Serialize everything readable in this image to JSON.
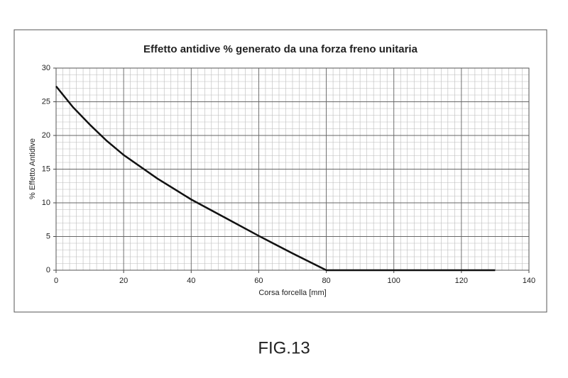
{
  "chart_data": {
    "type": "line",
    "title": "Effetto antidive % generato da una forza freno unitaria",
    "x_label": "Corsa forcella [mm]",
    "y_label": "% Effetto Antidive",
    "x": [
      0,
      5,
      10,
      15,
      20,
      30,
      40,
      50,
      60,
      70,
      80,
      130
    ],
    "series": [
      {
        "name": "Effetto antidive",
        "color": "#111111",
        "values": [
          27.3,
          24.2,
          21.6,
          19.2,
          17.1,
          13.6,
          10.5,
          7.8,
          5.1,
          2.5,
          0,
          0
        ]
      }
    ],
    "xlim": [
      0,
      140
    ],
    "xticks": [
      0,
      20,
      40,
      60,
      80,
      100,
      120,
      140
    ],
    "ylim": [
      0,
      30
    ],
    "yticks": [
      0,
      5,
      10,
      15,
      20,
      25,
      30
    ],
    "grid": true,
    "minor_grid": {
      "x": 2,
      "y": 1
    }
  },
  "figure_label": "FIG.13"
}
